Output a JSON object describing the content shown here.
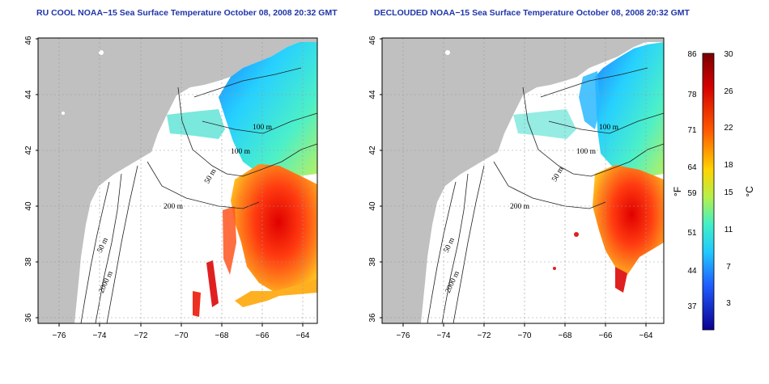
{
  "titles": {
    "left": "RU COOL NOAA−15 Sea Surface Temperature October 08, 2008 20:32 GMT",
    "right": "DECLOUDED NOAA−15 Sea Surface Temperature October 08, 2008 20:32 GMT"
  },
  "axes": {
    "lon_ticks": [
      "−76",
      "−74",
      "−72",
      "−70",
      "−68",
      "−66",
      "−64"
    ],
    "lat_ticks": [
      "36",
      "38",
      "40",
      "42",
      "44",
      "46"
    ]
  },
  "contour_labels": [
    "100 m",
    "100 m",
    "50 m",
    "200 m",
    "50 m",
    "2000 m"
  ],
  "colorbar": {
    "fahrenheit_ticks": [
      "86",
      "78",
      "71",
      "64",
      "59",
      "51",
      "44",
      "37"
    ],
    "celsius_ticks": [
      "30",
      "26",
      "22",
      "18",
      "15",
      "11",
      "7",
      "3"
    ],
    "fahrenheit_unit": "°F",
    "celsius_unit": "°C"
  },
  "colors": {
    "land": "#c0c0c0",
    "title": "#1f35a8"
  }
}
